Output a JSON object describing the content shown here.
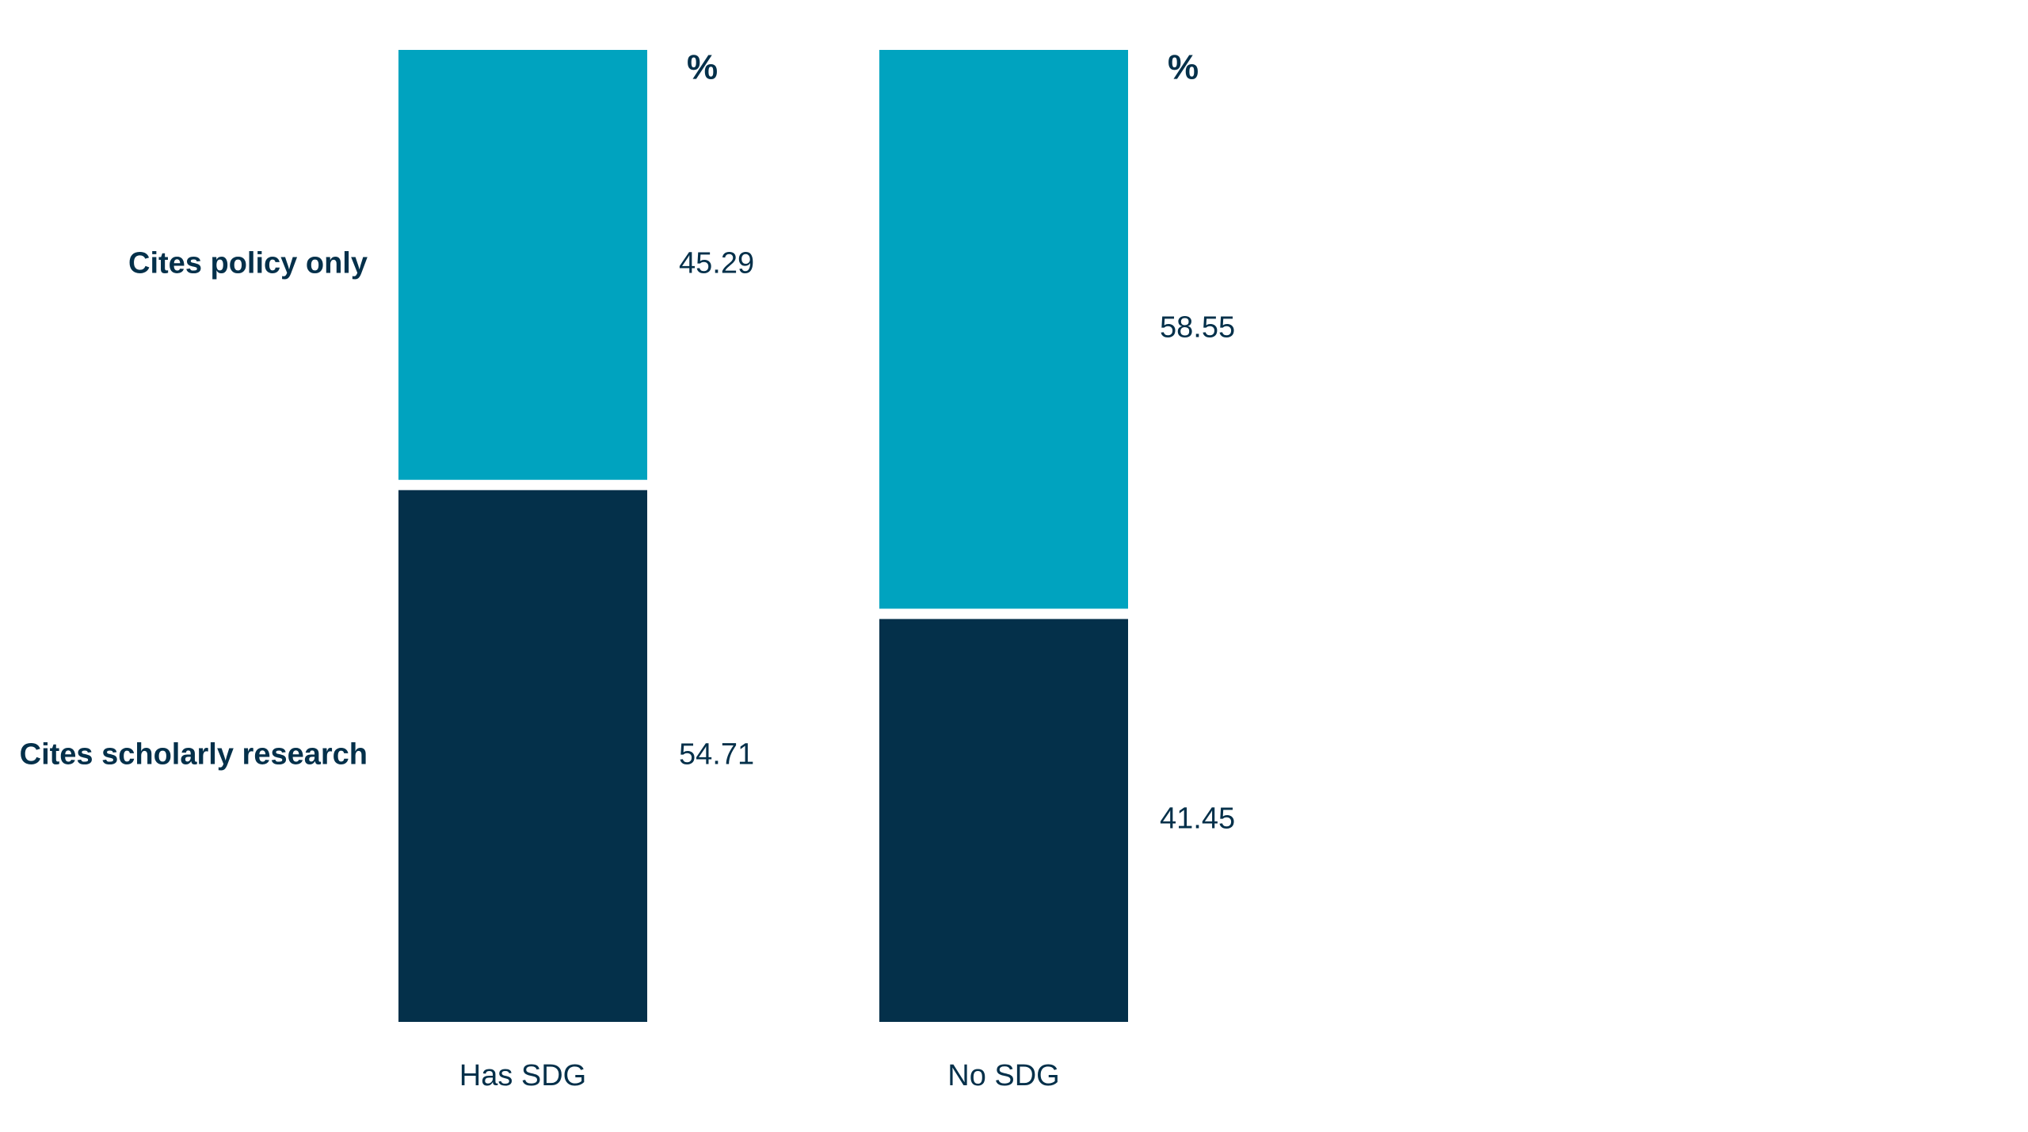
{
  "chart_data": {
    "type": "stacked_bar",
    "categories": [
      "Has SDG",
      "No SDG"
    ],
    "column_headers": [
      "%",
      "%"
    ],
    "series": [
      {
        "name": "Cites scholarly research",
        "color": "#04304a",
        "values": [
          54.71,
          41.45
        ]
      },
      {
        "name": "Cites policy only",
        "color": "#00a3bf",
        "values": [
          45.29,
          58.55
        ]
      }
    ],
    "ylim": [
      0,
      100
    ]
  }
}
